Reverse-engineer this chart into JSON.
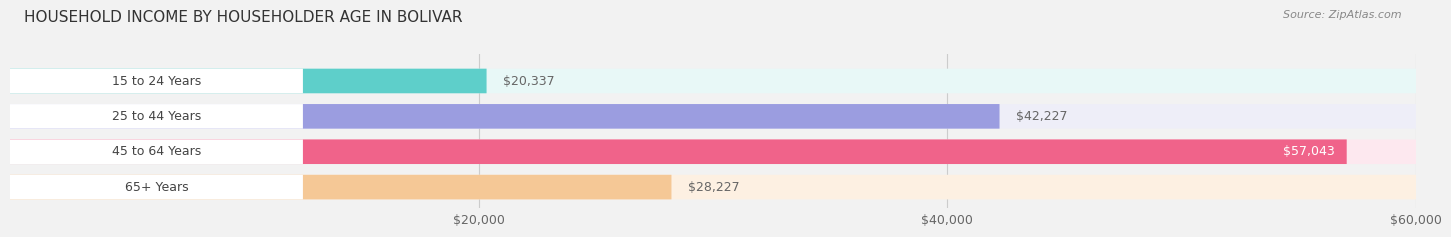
{
  "title": "HOUSEHOLD INCOME BY HOUSEHOLDER AGE IN BOLIVAR",
  "source": "Source: ZipAtlas.com",
  "categories": [
    "15 to 24 Years",
    "25 to 44 Years",
    "45 to 64 Years",
    "65+ Years"
  ],
  "values": [
    20337,
    42227,
    57043,
    28227
  ],
  "bar_colors": [
    "#5ecfca",
    "#9b9de0",
    "#f0638a",
    "#f5c896"
  ],
  "bar_bg_colors": [
    "#e8f8f7",
    "#eeeef8",
    "#fde8ef",
    "#fdf0e2"
  ],
  "xlim": [
    0,
    60000
  ],
  "xticks": [
    20000,
    40000,
    60000
  ],
  "xtick_labels": [
    "$20,000",
    "$40,000",
    "$60,000"
  ],
  "value_labels": [
    "$20,337",
    "$42,227",
    "$57,043",
    "$28,227"
  ],
  "title_fontsize": 11,
  "label_fontsize": 9,
  "value_fontsize": 9,
  "source_fontsize": 8,
  "background_color": "#f2f2f2"
}
